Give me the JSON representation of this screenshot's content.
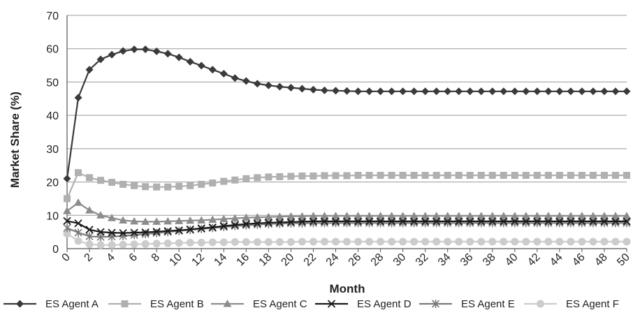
{
  "chart_data": {
    "type": "line",
    "title": "",
    "xlabel": "Month",
    "ylabel": "Market Share (%)",
    "xlim": [
      0,
      50
    ],
    "ylim": [
      0,
      70
    ],
    "x_ticks": [
      "0",
      "2",
      "4",
      "6",
      "8",
      "10",
      "12",
      "14",
      "16",
      "18",
      "20",
      "22",
      "24",
      "26",
      "28",
      "30",
      "32",
      "34",
      "36",
      "38",
      "40",
      "42",
      "44",
      "46",
      "48",
      "50"
    ],
    "y_ticks": [
      "0",
      "10",
      "20",
      "30",
      "40",
      "50",
      "60",
      "70"
    ],
    "grid": "horizontal",
    "legend_position": "bottom",
    "x": [
      0,
      1,
      2,
      3,
      4,
      5,
      6,
      7,
      8,
      9,
      10,
      11,
      12,
      13,
      14,
      15,
      16,
      17,
      18,
      19,
      20,
      21,
      22,
      23,
      24,
      25,
      26,
      27,
      28,
      29,
      30,
      31,
      32,
      33,
      34,
      35,
      36,
      37,
      38,
      39,
      40,
      41,
      42,
      43,
      44,
      45,
      46,
      47,
      48,
      49,
      50
    ],
    "series": [
      {
        "name": "ES Agent A",
        "color": "#3a3a3a",
        "marker": "diamond",
        "values": [
          21,
          45.3,
          53.7,
          56.8,
          58.2,
          59.3,
          59.8,
          59.8,
          59.2,
          58.5,
          57.4,
          56.1,
          54.9,
          53.7,
          52.5,
          51.2,
          50.3,
          49.5,
          49,
          48.6,
          48.3,
          48,
          47.7,
          47.5,
          47.4,
          47.3,
          47.2,
          47.2,
          47.2,
          47.2,
          47.2,
          47.2,
          47.2,
          47.2,
          47.2,
          47.2,
          47.2,
          47.2,
          47.2,
          47.2,
          47.2,
          47.2,
          47.2,
          47.2,
          47.2,
          47.2,
          47.2,
          47.2,
          47.2,
          47.2,
          47.2
        ]
      },
      {
        "name": "ES Agent B",
        "color": "#b0b0b0",
        "marker": "square",
        "values": [
          15,
          22.8,
          21.3,
          20.5,
          19.9,
          19.3,
          18.9,
          18.6,
          18.5,
          18.5,
          18.7,
          18.9,
          19.3,
          19.7,
          20.2,
          20.6,
          21,
          21.3,
          21.5,
          21.6,
          21.7,
          21.8,
          21.8,
          21.9,
          21.9,
          21.9,
          22,
          22,
          22,
          22,
          22,
          22,
          22,
          22,
          22,
          22,
          22,
          22,
          22,
          22,
          22,
          22,
          22,
          22,
          22,
          22,
          22,
          22,
          22,
          22,
          22
        ]
      },
      {
        "name": "ES Agent C",
        "color": "#8c8c8c",
        "marker": "triangle",
        "values": [
          11.3,
          13.8,
          11.5,
          10,
          9.2,
          8.5,
          8.2,
          8.1,
          8.1,
          8.2,
          8.3,
          8.4,
          8.5,
          8.7,
          8.9,
          9.1,
          9.3,
          9.4,
          9.5,
          9.6,
          9.7,
          9.7,
          9.8,
          9.8,
          9.8,
          9.8,
          9.8,
          9.8,
          9.8,
          9.8,
          9.8,
          9.8,
          9.8,
          9.8,
          9.8,
          9.8,
          9.8,
          9.8,
          9.8,
          9.8,
          9.8,
          9.8,
          9.8,
          9.8,
          9.8,
          9.8,
          9.8,
          9.8,
          9.8,
          9.8,
          9.8
        ]
      },
      {
        "name": "ES Agent D",
        "color": "#1a1a1a",
        "marker": "x",
        "values": [
          8.3,
          7.6,
          5.7,
          5,
          4.8,
          4.7,
          4.8,
          4.9,
          5.1,
          5.3,
          5.5,
          5.8,
          6.1,
          6.4,
          6.8,
          7.1,
          7.4,
          7.6,
          7.8,
          7.9,
          8,
          8.1,
          8.2,
          8.2,
          8.2,
          8.2,
          8.2,
          8.2,
          8.2,
          8.2,
          8.2,
          8.2,
          8.2,
          8.2,
          8.2,
          8.2,
          8.2,
          8.2,
          8.2,
          8.2,
          8.2,
          8.2,
          8.2,
          8.2,
          8.2,
          8.2,
          8.2,
          8.2,
          8.2,
          8.2,
          8.2
        ]
      },
      {
        "name": "ES Agent E",
        "color": "#7a7a7a",
        "marker": "asterisk",
        "values": [
          6.2,
          4.8,
          3.7,
          3.5,
          3.6,
          3.8,
          4.1,
          4.4,
          4.7,
          5,
          5.3,
          5.6,
          5.9,
          6.2,
          6.5,
          6.8,
          7,
          7.2,
          7.4,
          7.5,
          7.6,
          7.6,
          7.7,
          7.7,
          7.7,
          7.7,
          7.7,
          7.7,
          7.7,
          7.7,
          7.7,
          7.7,
          7.7,
          7.7,
          7.7,
          7.7,
          7.7,
          7.7,
          7.7,
          7.7,
          7.7,
          7.7,
          7.7,
          7.7,
          7.7,
          7.7,
          7.7,
          7.7,
          7.7,
          7.7,
          7.7
        ]
      },
      {
        "name": "ES Agent F",
        "color": "#cccccc",
        "marker": "circle",
        "values": [
          4.5,
          2.3,
          1.3,
          1.1,
          1.1,
          1.2,
          1.3,
          1.4,
          1.5,
          1.6,
          1.7,
          1.8,
          1.8,
          1.9,
          1.9,
          2,
          2,
          2,
          2,
          2,
          2,
          2.1,
          2.1,
          2.1,
          2.1,
          2.1,
          2.1,
          2.1,
          2.1,
          2.1,
          2.1,
          2.1,
          2.1,
          2.1,
          2.1,
          2.1,
          2.1,
          2.1,
          2.1,
          2.1,
          2.1,
          2.1,
          2.1,
          2.1,
          2.1,
          2.1,
          2.1,
          2.1,
          2.1,
          2.1,
          2.1
        ]
      }
    ]
  }
}
